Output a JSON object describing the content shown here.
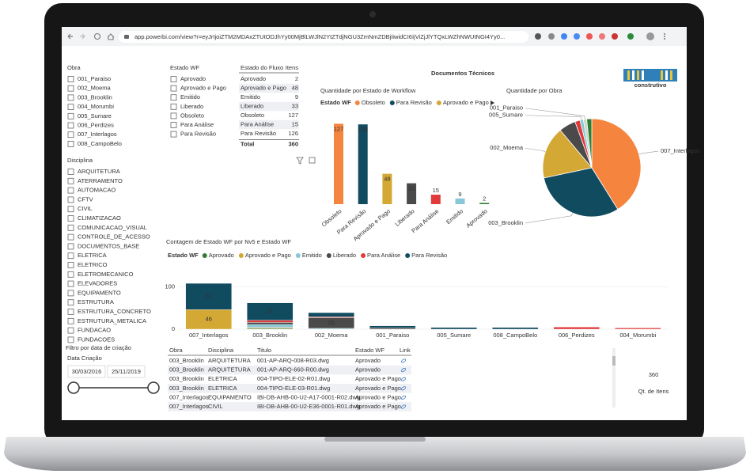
{
  "browser": {
    "url": "app.powerbi.com/view?r=eyJrIjoiZTM2MDAxZTUtODJhYy00MjBlLWJlN2YtZTdjNGU3ZmNmZDBjIiwidCI6IjViZjJlYTQxLWZhNWUtNGI4Yy0..."
  },
  "report_title": "Documentos Técnicos",
  "logo": "construtivo",
  "slicers": {
    "obra": {
      "title": "Obra",
      "items": [
        "001_Paraiso",
        "002_Moema",
        "003_Brooklin",
        "004_Morumbi",
        "005_Sumare",
        "006_Perdizes",
        "007_Interlagos",
        "008_CampoBelo"
      ]
    },
    "estado_wf": {
      "title": "Estado WF",
      "items": [
        "Aprovado",
        "Aprovado e Pago",
        "Emitido",
        "Liberado",
        "Obsoleto",
        "Para Análise",
        "Para Revisão"
      ]
    },
    "disciplina": {
      "title": "Disciplina",
      "items": [
        "ARQUITETURA",
        "ATERRAMENTO",
        "AUTOMACAO",
        "CFTV",
        "CIVIL",
        "CLIMATIZACAO",
        "COMUNICACAO_VISUAL",
        "CONTROLE_DE_ACESSO",
        "DOCUMENTOS_BASE",
        "ELETRICA",
        "ELETRICO",
        "ELETROMECANICO",
        "ELEVADORES",
        "EQUIPAMENTO",
        "ESTRUTURA",
        "ESTRUTURA_CONCRETO",
        "ESTRUTURA_METALICA",
        "FUNDACAO",
        "FUNDACOES"
      ]
    }
  },
  "date_filter": {
    "hint": "Filtro por data de criação",
    "title": "Data Criação",
    "start": "30/03/2016",
    "end": "25/11/2019"
  },
  "status_table": {
    "headers": [
      "Estado do Fluxo",
      "Itens"
    ],
    "rows": [
      [
        "Aprovado",
        2
      ],
      [
        "Aprovado e Pago",
        48
      ],
      [
        "Emitido",
        9
      ],
      [
        "Liberado",
        33
      ],
      [
        "Obsoleto",
        127
      ],
      [
        "Para Análise",
        15
      ],
      [
        "Para Revisão",
        126
      ]
    ],
    "total": [
      "Total",
      360
    ]
  },
  "chart_data": [
    {
      "type": "bar",
      "title": "Quantidade por Estado de Workflow",
      "legend_title": "Estado WF",
      "categories": [
        "Obsoleto",
        "Para Revisão",
        "Aprovado e Pago",
        "Liberado",
        "Para Análise",
        "Emitido",
        "Aprovado"
      ],
      "values": [
        127,
        126,
        48,
        33,
        15,
        9,
        2
      ],
      "colors": [
        "#f5843f",
        "#114b5f",
        "#d4a834",
        "#4a4a4a",
        "#e03a3a",
        "#88c6d8",
        "#2e7d32"
      ]
    },
    {
      "type": "pie",
      "title": "Quantidade por Obra",
      "categories": [
        "007_Interlagos",
        "003_Brooklin",
        "002_Moema",
        null,
        null,
        "005_Sumare",
        "001_Paraiso",
        null
      ],
      "values": [
        148,
        110,
        62,
        20,
        6,
        4,
        4,
        6
      ],
      "colors": [
        "#f5843f",
        "#114b5f",
        "#d4a834",
        "#4a4a4a",
        "#e03a3a",
        "#88c6d8",
        "#c9d8c5",
        "#2e7d32"
      ]
    },
    {
      "type": "stacked_bar",
      "title": "Contagem de Estado WF por Nv5 e Estado WF",
      "legend_title": "Estado WF",
      "categories": [
        "007_Interlagos",
        "003_Brooklin",
        "002_Moema",
        "001_Paraiso",
        "005_Sumare",
        "008_CampoBelo",
        "006_Perdizes",
        "004_Morumbi"
      ],
      "series": [
        {
          "name": "Aprovado",
          "color": "#2e7d32",
          "values": [
            0,
            2,
            0,
            0,
            0,
            0,
            0,
            0
          ]
        },
        {
          "name": "Aprovado e Pago",
          "color": "#d4a834",
          "values": [
            46,
            2,
            0,
            0,
            0,
            0,
            0,
            0
          ]
        },
        {
          "name": "Emitido",
          "color": "#88c6d8",
          "values": [
            0,
            7,
            2,
            0,
            0,
            0,
            0,
            0
          ]
        },
        {
          "name": "Liberado",
          "color": "#4a4a4a",
          "values": [
            0,
            5,
            25,
            3,
            0,
            0,
            0,
            0
          ]
        },
        {
          "name": "Para Análise",
          "color": "#e03a3a",
          "values": [
            0,
            5,
            2,
            0,
            0,
            0,
            5,
            3
          ]
        },
        {
          "name": "Para Revisão",
          "color": "#114b5f",
          "values": [
            62,
            41,
            10,
            5,
            4,
            4,
            0,
            0
          ]
        }
      ],
      "ylim": [
        0,
        110
      ],
      "yticks": [
        0,
        100
      ]
    }
  ],
  "documents_table": {
    "headers": [
      "Obra",
      "Disciplina",
      "Titulo",
      "Estado WF",
      "Link"
    ],
    "rows": [
      [
        "003_Brooklin",
        "ARQUITETURA",
        "001-AP-ARQ-008-R03.dwg",
        "Aprovado"
      ],
      [
        "003_Brooklin",
        "ARQUITETURA",
        "001-AP-ARQ-660-R00.dwg",
        "Aprovado"
      ],
      [
        "003_Brooklin",
        "ELETRICA",
        "004-TIPO-ELE-02-R01.dwg",
        "Aprovado e Pago"
      ],
      [
        "003_Brooklin",
        "ELETRICA",
        "004-TIPO-ELE-03-R01.dwg",
        "Aprovado e Pago"
      ],
      [
        "007_Interlagos",
        "EQUIPAMENTO",
        "IBI-DB-AHB-00-U2-A17-0001-R02.dwg",
        "Aprovado e Pago"
      ],
      [
        "007_Interlagos",
        "CIVIL",
        "IBI-DB-AHB-00-U2-E36-0001-R01.dwg",
        "Aprovado e Pago"
      ]
    ]
  },
  "kpi": {
    "value": 360,
    "label": "Qt. de Itens"
  }
}
